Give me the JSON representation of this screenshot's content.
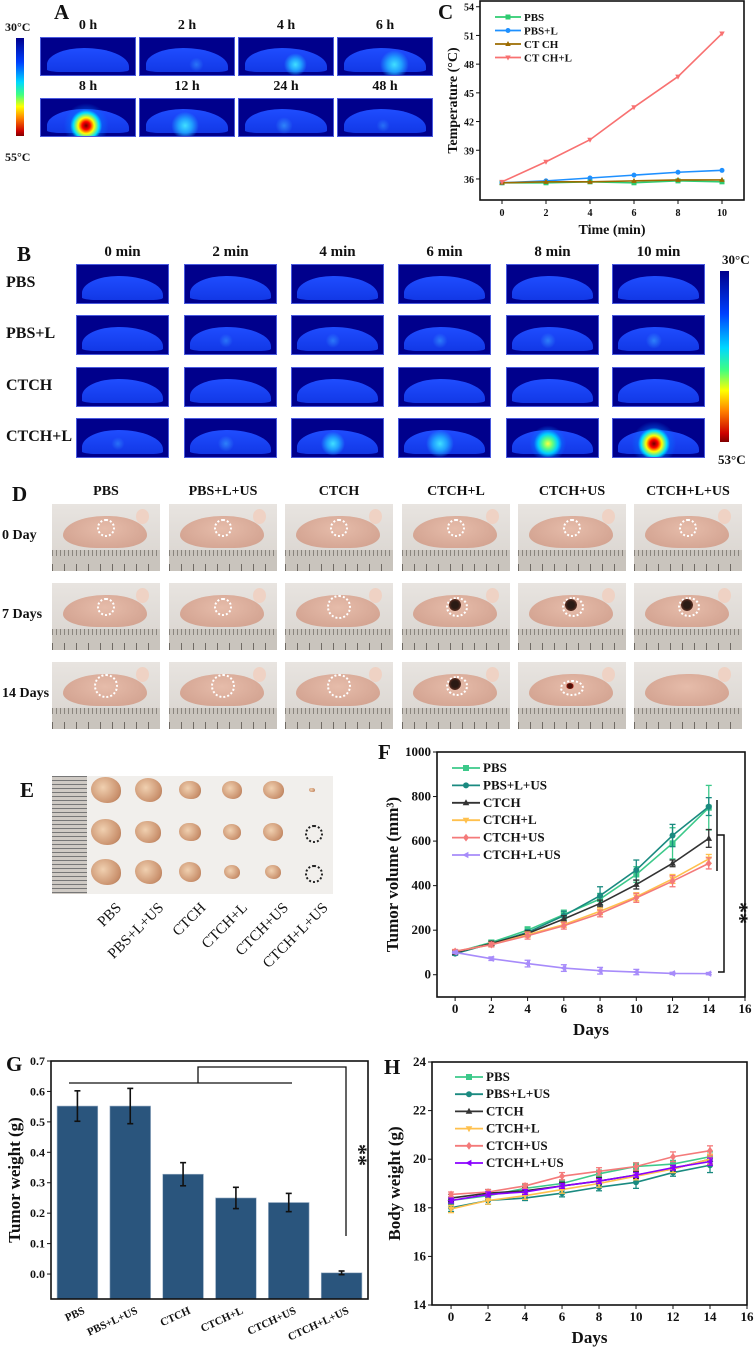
{
  "panels": {
    "a": "A",
    "b": "B",
    "c": "C",
    "d": "D",
    "e": "E",
    "f": "F",
    "g": "G",
    "h": "H"
  },
  "panel_a": {
    "times": [
      "0 h",
      "2 h",
      "4 h",
      "6 h",
      "8 h",
      "12 h",
      "24 h",
      "48 h"
    ],
    "heat": [
      0,
      0.1,
      0.35,
      0.6,
      1.0,
      0.55,
      0.25,
      0.05
    ],
    "scale_top": "30°C",
    "scale_bottom": "55°C"
  },
  "panel_b": {
    "times": [
      "0 min",
      "2 min",
      "4 min",
      "6 min",
      "8 min",
      "10 min"
    ],
    "groups": [
      "PBS",
      "PBS+L",
      "CTCH",
      "CTCH+L"
    ],
    "heat": [
      [
        0,
        0,
        0,
        0,
        0,
        0
      ],
      [
        0,
        0.08,
        0.12,
        0.15,
        0.18,
        0.2
      ],
      [
        0,
        0,
        0,
        0,
        0,
        0
      ],
      [
        0.05,
        0.2,
        0.4,
        0.55,
        0.8,
        1.0
      ]
    ],
    "scale_top": "30°C",
    "scale_bottom": "53°C"
  },
  "panel_d": {
    "groups": [
      "PBS",
      "PBS+L+US",
      "CTCH",
      "CTCH+L",
      "CTCH+US",
      "CTCH+L+US"
    ],
    "days": [
      "0 Day",
      "7 Days",
      "14 Days"
    ],
    "tumor_state": [
      [
        "circle",
        "circle",
        "circle",
        "circle",
        "circle",
        "circle"
      ],
      [
        "circle",
        "circle",
        "circle-lg",
        "scab",
        "scab",
        "scab"
      ],
      [
        "circle-lg",
        "circle-lg",
        "circle-lg",
        "scab",
        "red",
        "none"
      ]
    ]
  },
  "panel_e": {
    "groups": [
      "PBS",
      "PBS+L+US",
      "CTCH",
      "CTCH+L",
      "CTCH+US",
      "CTCH+L+US"
    ],
    "tumor_size": [
      [
        1,
        1,
        1
      ],
      [
        0.9,
        0.85,
        0.9
      ],
      [
        0.72,
        0.72,
        0.75
      ],
      [
        0.66,
        0.62,
        0.56
      ],
      [
        0.7,
        0.68,
        0.55
      ],
      [
        0.18,
        0,
        0
      ]
    ]
  },
  "chart_data": [
    {
      "id": "C",
      "type": "line",
      "title": "",
      "xlabel": "Time (min)",
      "ylabel": "Temperature (°C)",
      "xlim": [
        -1,
        11
      ],
      "ylim": [
        33.8,
        54.6
      ],
      "xticks": [
        0,
        2,
        4,
        6,
        8,
        10
      ],
      "yticks": [
        36,
        39,
        42,
        45,
        48,
        51,
        54
      ],
      "x": [
        0,
        2,
        4,
        6,
        8,
        10
      ],
      "series": [
        {
          "name": "PBS",
          "color": "#2ecc71",
          "marker": "square",
          "values": [
            35.6,
            35.6,
            35.7,
            35.6,
            35.8,
            35.7
          ]
        },
        {
          "name": "PBS+L",
          "color": "#1e90ff",
          "marker": "circle",
          "values": [
            35.6,
            35.8,
            36.1,
            36.4,
            36.7,
            36.9
          ]
        },
        {
          "name": "CT CH",
          "color": "#9c6b00",
          "marker": "triangle",
          "values": [
            35.6,
            35.7,
            35.7,
            35.8,
            35.9,
            35.9
          ]
        },
        {
          "name": "CT CH+L",
          "color": "#f87171",
          "marker": "down",
          "values": [
            35.7,
            37.8,
            40.1,
            43.5,
            46.7,
            51.2
          ]
        }
      ],
      "legend": "top-left",
      "grid": false
    },
    {
      "id": "F",
      "type": "line",
      "title": "",
      "xlabel": "Days",
      "ylabel": "Tumor volume (mm³)",
      "xlim": [
        -1,
        16
      ],
      "ylim": [
        -100,
        1000
      ],
      "xticks": [
        0,
        2,
        4,
        6,
        8,
        10,
        12,
        14,
        16
      ],
      "yticks": [
        0,
        200,
        400,
        600,
        800,
        1000
      ],
      "x": [
        0,
        2,
        4,
        6,
        8,
        10,
        12,
        14
      ],
      "series": [
        {
          "name": "PBS",
          "color": "#3cc98a",
          "marker": "square",
          "values": [
            100,
            145,
            200,
            270,
            340,
            450,
            590,
            750
          ],
          "err": [
            8,
            10,
            15,
            20,
            25,
            35,
            70,
            100
          ]
        },
        {
          "name": "PBS+L+US",
          "color": "#1a8a80",
          "marker": "circle",
          "values": [
            95,
            140,
            190,
            265,
            355,
            470,
            625,
            755
          ],
          "err": [
            8,
            10,
            12,
            20,
            40,
            45,
            50,
            40
          ]
        },
        {
          "name": "CTCH",
          "color": "#333333",
          "marker": "triangle",
          "values": [
            100,
            140,
            185,
            250,
            320,
            405,
            500,
            612
          ],
          "err": [
            8,
            10,
            12,
            15,
            15,
            20,
            15,
            40
          ]
        },
        {
          "name": "CTCH+L",
          "color": "#ffc04d",
          "marker": "down",
          "values": [
            105,
            135,
            180,
            225,
            285,
            350,
            430,
            520
          ],
          "err": [
            8,
            10,
            12,
            12,
            15,
            18,
            20,
            20
          ]
        },
        {
          "name": "CTCH+US",
          "color": "#f47a7a",
          "marker": "diamond",
          "values": [
            105,
            135,
            175,
            220,
            275,
            345,
            420,
            500
          ],
          "err": [
            8,
            10,
            15,
            15,
            15,
            20,
            25,
            25
          ]
        },
        {
          "name": "CTCH+L+US",
          "color": "#a78bfa",
          "marker": "left",
          "values": [
            100,
            72,
            50,
            30,
            18,
            12,
            6,
            5
          ],
          "err": [
            5,
            8,
            15,
            15,
            15,
            12,
            5,
            5
          ]
        }
      ],
      "annotation": "**",
      "legend": "top-left",
      "grid": false
    },
    {
      "id": "G",
      "type": "bar",
      "title": "",
      "xlabel": "",
      "ylabel": "Tumor weight (g)",
      "ylim": [
        -0.082,
        0.7
      ],
      "yticks": [
        "0.0",
        "0.1",
        "0.2",
        "0.3",
        "0.4",
        "0.5",
        "0.6",
        "0.7"
      ],
      "categories": [
        "PBS",
        "PBS+L+US",
        "CTCH",
        "CTCH+L",
        "CTCH+US",
        "CTCH+L+US"
      ],
      "values": [
        0.552,
        0.552,
        0.328,
        0.25,
        0.235,
        0.004
      ],
      "err": [
        0.05,
        0.058,
        0.038,
        0.035,
        0.03,
        0.006
      ],
      "color": "#2a557d",
      "annotation": "**",
      "grid": false
    },
    {
      "id": "H",
      "type": "line",
      "title": "",
      "xlabel": "Days",
      "ylabel": "Body weight (g)",
      "xlim": [
        -1.03,
        16
      ],
      "ylim": [
        14,
        24
      ],
      "xticks": [
        0,
        2,
        4,
        6,
        8,
        10,
        12,
        14,
        16
      ],
      "yticks": [
        14,
        16,
        18,
        20,
        22,
        24
      ],
      "x": [
        0,
        2,
        4,
        6,
        8,
        10,
        12,
        14
      ],
      "series": [
        {
          "name": "PBS",
          "color": "#3cc98a",
          "marker": "square",
          "values": [
            18.3,
            18.5,
            18.8,
            19.0,
            19.4,
            19.7,
            19.8,
            20.1
          ],
          "err": [
            0.15,
            0.15,
            0.15,
            0.15,
            0.15,
            0.15,
            0.15,
            0.2
          ]
        },
        {
          "name": "PBS+L+US",
          "color": "#1a8a80",
          "marker": "circle",
          "values": [
            18.0,
            18.3,
            18.4,
            18.6,
            18.85,
            19.05,
            19.45,
            19.75
          ],
          "err": [
            0.15,
            0.15,
            0.1,
            0.15,
            0.15,
            0.25,
            0.15,
            0.3
          ]
        },
        {
          "name": "CTCH",
          "color": "#333333",
          "marker": "triangle",
          "values": [
            18.4,
            18.6,
            18.7,
            18.9,
            19.1,
            19.35,
            19.6,
            20.0
          ],
          "err": [
            0.15,
            0.15,
            0.15,
            0.15,
            0.15,
            0.15,
            0.15,
            0.2
          ]
        },
        {
          "name": "CTCH+L",
          "color": "#ffc04d",
          "marker": "down",
          "values": [
            17.95,
            18.3,
            18.5,
            18.75,
            19.0,
            19.3,
            19.6,
            20.0
          ],
          "err": [
            0.15,
            0.15,
            0.15,
            0.15,
            0.15,
            0.15,
            0.15,
            0.2
          ]
        },
        {
          "name": "CTCH+US",
          "color": "#f47a7a",
          "marker": "diamond",
          "values": [
            18.55,
            18.65,
            18.9,
            19.3,
            19.5,
            19.7,
            20.1,
            20.35
          ],
          "err": [
            0.1,
            0.1,
            0.1,
            0.15,
            0.15,
            0.15,
            0.2,
            0.2
          ]
        },
        {
          "name": "CTCH+L+US",
          "color": "#8a00ff",
          "marker": "left",
          "values": [
            18.3,
            18.55,
            18.65,
            18.9,
            19.1,
            19.35,
            19.65,
            19.9
          ],
          "err": [
            0.1,
            0.1,
            0.1,
            0.1,
            0.1,
            0.1,
            0.1,
            0.15
          ]
        }
      ],
      "legend": "top-left",
      "grid": false
    }
  ]
}
